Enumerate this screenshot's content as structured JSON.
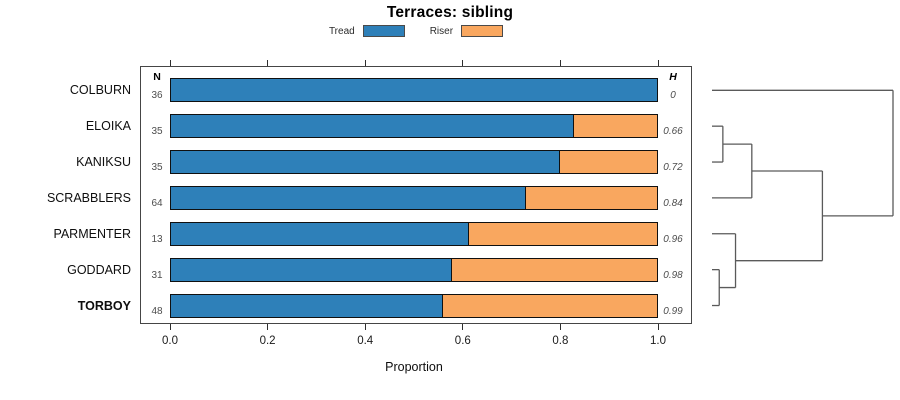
{
  "chart_data": {
    "type": "bar",
    "orientation": "horizontal_stacked",
    "title": "Terraces: sibling",
    "xlabel": "Proportion",
    "xlim": [
      0,
      1
    ],
    "xticks": [
      "0.0",
      "0.2",
      "0.4",
      "0.6",
      "0.8",
      "1.0"
    ],
    "grid": false,
    "legend_position": "top-center",
    "columns": {
      "n_header": "N",
      "h_header": "H"
    },
    "series": [
      {
        "name": "Tread",
        "color": "#2E80B9"
      },
      {
        "name": "Riser",
        "color": "#F9A75F"
      }
    ],
    "rows": [
      {
        "category": "COLBURN",
        "n": 36,
        "tread": 1.0,
        "riser": 0.0,
        "h": "0",
        "bold": false
      },
      {
        "category": "ELOIKA",
        "n": 35,
        "tread": 0.83,
        "riser": 0.17,
        "h": "0.66",
        "bold": false
      },
      {
        "category": "KANIKSU",
        "n": 35,
        "tread": 0.8,
        "riser": 0.2,
        "h": "0.72",
        "bold": false
      },
      {
        "category": "SCRABBLERS",
        "n": 64,
        "tread": 0.73,
        "riser": 0.27,
        "h": "0.84",
        "bold": false
      },
      {
        "category": "PARMENTER",
        "n": 13,
        "tread": 0.615,
        "riser": 0.385,
        "h": "0.96",
        "bold": false
      },
      {
        "category": "GODDARD",
        "n": 31,
        "tread": 0.58,
        "riser": 0.42,
        "h": "0.98",
        "bold": false
      },
      {
        "category": "TORBOY",
        "n": 48,
        "tread": 0.56,
        "riser": 0.44,
        "h": "0.99",
        "bold": true
      }
    ],
    "dendrogram": {
      "leaf_order": [
        "COLBURN",
        "ELOIKA",
        "KANIKSU",
        "SCRABBLERS",
        "PARMENTER",
        "GODDARD",
        "TORBOY"
      ],
      "line_color": "#5a5a5a",
      "merges": [
        {
          "a": "L5",
          "b": "L6",
          "height": 0.04
        },
        {
          "a": "L1",
          "b": "L2",
          "height": 0.06
        },
        {
          "a": "L4",
          "b": "M0",
          "height": 0.13
        },
        {
          "a": "M1",
          "b": "L3",
          "height": 0.22
        },
        {
          "a": "M3",
          "b": "M2",
          "height": 0.61
        },
        {
          "a": "L0",
          "b": "M4",
          "height": 1.0
        }
      ]
    }
  }
}
